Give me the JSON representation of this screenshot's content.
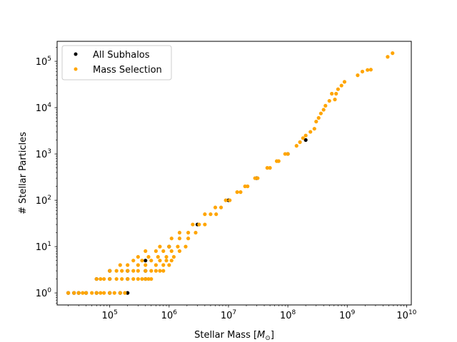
{
  "chart_data": {
    "type": "scatter",
    "title": "",
    "xlabel": "Stellar Mass [$M_\\odot$]",
    "xlabel_text": "Stellar Mass [",
    "xlabel_symbol": "M",
    "xlabel_subscript": "⊙",
    "xlabel_close": "]",
    "ylabel": "# Stellar Particles",
    "x_scale": "log",
    "y_scale": "log",
    "xlim": [
      13000,
      12000000000
    ],
    "ylim": [
      0.55,
      270000
    ],
    "grid": false,
    "legend_position": "top-left",
    "x_ticks": [
      {
        "value": 100000,
        "base": "10",
        "exp": "5"
      },
      {
        "value": 1000000,
        "base": "10",
        "exp": "6"
      },
      {
        "value": 10000000,
        "base": "10",
        "exp": "7"
      },
      {
        "value": 100000000,
        "base": "10",
        "exp": "8"
      },
      {
        "value": 1000000000,
        "base": "10",
        "exp": "9"
      },
      {
        "value": 10000000000,
        "base": "10",
        "exp": "10"
      }
    ],
    "y_ticks": [
      {
        "value": 1,
        "base": "10",
        "exp": "0"
      },
      {
        "value": 10,
        "base": "10",
        "exp": "1"
      },
      {
        "value": 100,
        "base": "10",
        "exp": "2"
      },
      {
        "value": 1000,
        "base": "10",
        "exp": "3"
      },
      {
        "value": 10000,
        "base": "10",
        "exp": "4"
      },
      {
        "value": 100000,
        "base": "10",
        "exp": "5"
      }
    ],
    "series": [
      {
        "name": "All Subhalos",
        "color": "#000000",
        "points": [
          [
            20000,
            1
          ],
          [
            25000,
            1
          ],
          [
            30000,
            1
          ],
          [
            40000,
            1
          ],
          [
            60000,
            1
          ],
          [
            100000,
            1
          ],
          [
            150000,
            1
          ],
          [
            200000,
            1
          ],
          [
            60000,
            2
          ],
          [
            100000,
            2
          ],
          [
            200000,
            2
          ],
          [
            400000,
            2
          ],
          [
            100000,
            3
          ],
          [
            200000,
            3
          ],
          [
            400000,
            3
          ],
          [
            400000,
            5
          ],
          [
            1000000,
            10
          ],
          [
            3000000,
            30
          ],
          [
            10000000,
            100
          ],
          [
            30000000,
            300
          ],
          [
            100000000,
            1000
          ],
          [
            200000000,
            2000
          ]
        ]
      },
      {
        "name": "Mass Selection",
        "color": "#ffa500",
        "points": [
          [
            20000,
            1
          ],
          [
            25000,
            1
          ],
          [
            30000,
            1
          ],
          [
            35000,
            1
          ],
          [
            40000,
            1
          ],
          [
            50000,
            1
          ],
          [
            60000,
            1
          ],
          [
            70000,
            1
          ],
          [
            80000,
            1
          ],
          [
            100000,
            1
          ],
          [
            120000,
            1
          ],
          [
            150000,
            1
          ],
          [
            180000,
            1
          ],
          [
            60000,
            2
          ],
          [
            70000,
            2
          ],
          [
            80000,
            2
          ],
          [
            100000,
            2
          ],
          [
            130000,
            2
          ],
          [
            160000,
            2
          ],
          [
            200000,
            2
          ],
          [
            250000,
            2
          ],
          [
            300000,
            2
          ],
          [
            350000,
            2
          ],
          [
            400000,
            2
          ],
          [
            450000,
            2
          ],
          [
            500000,
            2
          ],
          [
            100000,
            3
          ],
          [
            130000,
            3
          ],
          [
            160000,
            3
          ],
          [
            200000,
            3
          ],
          [
            250000,
            3
          ],
          [
            300000,
            3
          ],
          [
            400000,
            3
          ],
          [
            500000,
            3
          ],
          [
            600000,
            3
          ],
          [
            700000,
            3
          ],
          [
            800000,
            3
          ],
          [
            150000,
            4
          ],
          [
            200000,
            4
          ],
          [
            300000,
            4
          ],
          [
            400000,
            4
          ],
          [
            600000,
            4
          ],
          [
            800000,
            4
          ],
          [
            1000000,
            4
          ],
          [
            250000,
            5
          ],
          [
            350000,
            5
          ],
          [
            500000,
            5
          ],
          [
            700000,
            5
          ],
          [
            900000,
            5
          ],
          [
            1100000,
            5
          ],
          [
            300000,
            6
          ],
          [
            450000,
            6
          ],
          [
            650000,
            6
          ],
          [
            900000,
            6
          ],
          [
            1200000,
            6
          ],
          [
            400000,
            8
          ],
          [
            600000,
            8
          ],
          [
            800000,
            8
          ],
          [
            1100000,
            8
          ],
          [
            1500000,
            8
          ],
          [
            700000,
            10
          ],
          [
            1000000,
            10
          ],
          [
            1400000,
            10
          ],
          [
            1900000,
            10
          ],
          [
            1100000,
            15
          ],
          [
            1500000,
            15
          ],
          [
            2100000,
            15
          ],
          [
            1500000,
            20
          ],
          [
            2100000,
            20
          ],
          [
            2800000,
            20
          ],
          [
            2500000,
            30
          ],
          [
            3200000,
            30
          ],
          [
            4000000,
            30
          ],
          [
            4000000,
            50
          ],
          [
            5000000,
            50
          ],
          [
            6200000,
            50
          ],
          [
            6000000,
            70
          ],
          [
            7500000,
            70
          ],
          [
            9000000,
            100
          ],
          [
            10500000,
            100
          ],
          [
            14000000,
            150
          ],
          [
            16000000,
            150
          ],
          [
            19000000,
            200
          ],
          [
            21000000,
            200
          ],
          [
            28000000,
            300
          ],
          [
            31000000,
            300
          ],
          [
            45000000,
            500
          ],
          [
            50000000,
            500
          ],
          [
            65000000,
            700
          ],
          [
            70000000,
            700
          ],
          [
            90000000,
            1000
          ],
          [
            100000000,
            1000
          ],
          [
            140000000,
            1500
          ],
          [
            160000000,
            1800
          ],
          [
            180000000,
            2200
          ],
          [
            200000000,
            2500
          ],
          [
            240000000,
            3000
          ],
          [
            280000000,
            3500
          ],
          [
            300000000,
            5000
          ],
          [
            330000000,
            6000
          ],
          [
            360000000,
            7500
          ],
          [
            400000000,
            9000
          ],
          [
            430000000,
            11000
          ],
          [
            500000000,
            14000
          ],
          [
            550000000,
            20000
          ],
          [
            620000000,
            15000
          ],
          [
            650000000,
            20000
          ],
          [
            700000000,
            25000
          ],
          [
            800000000,
            30000
          ],
          [
            900000000,
            36000
          ],
          [
            1500000000,
            50000
          ],
          [
            1800000000,
            60000
          ],
          [
            2200000000,
            65000
          ],
          [
            2500000000,
            66000
          ],
          [
            4800000000,
            125000
          ],
          [
            5800000000,
            150000
          ]
        ]
      }
    ]
  }
}
